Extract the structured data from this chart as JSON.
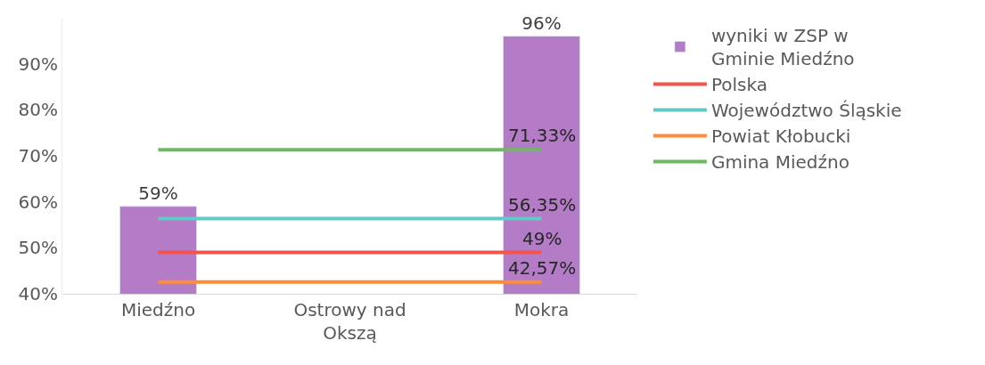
{
  "chart_data": {
    "type": "bar",
    "categories": [
      "Miedźno",
      "Ostrowy nad Okszą",
      "Mokra"
    ],
    "series": [
      {
        "name": "wyniki w ZSP w Gminie Miedźno",
        "type": "bar",
        "color": "#b47cc7",
        "values": [
          59,
          null,
          96
        ],
        "value_labels": [
          "59%",
          null,
          "96%"
        ]
      },
      {
        "name": "Polska",
        "type": "line",
        "color": "#f4524d",
        "values": [
          49,
          49,
          49
        ],
        "value_labels": [
          null,
          null,
          "49%"
        ]
      },
      {
        "name": "Województwo Śląskie",
        "type": "line",
        "color": "#64c8c8",
        "values": [
          56.35,
          56.35,
          56.35
        ],
        "value_labels": [
          null,
          null,
          "56,35%"
        ]
      },
      {
        "name": "Powiat Kłobucki",
        "type": "line",
        "color": "#ff8c3a",
        "values": [
          42.57,
          42.57,
          42.57
        ],
        "value_labels": [
          null,
          null,
          "42,57%"
        ]
      },
      {
        "name": "Gmina Miedźno",
        "type": "line",
        "color": "#70b865",
        "values": [
          71.33,
          71.33,
          71.33
        ],
        "value_labels": [
          null,
          null,
          "71,33%"
        ]
      }
    ],
    "ylim": [
      40,
      100
    ],
    "yticks": [
      {
        "value": 40,
        "label": "40%"
      },
      {
        "value": 50,
        "label": "50%"
      },
      {
        "value": 60,
        "label": "60%"
      },
      {
        "value": 70,
        "label": "70%"
      },
      {
        "value": 80,
        "label": "80%"
      },
      {
        "value": 90,
        "label": "90%"
      }
    ],
    "grid": false,
    "legend": "right",
    "marker": "none",
    "line_style": "solid"
  }
}
